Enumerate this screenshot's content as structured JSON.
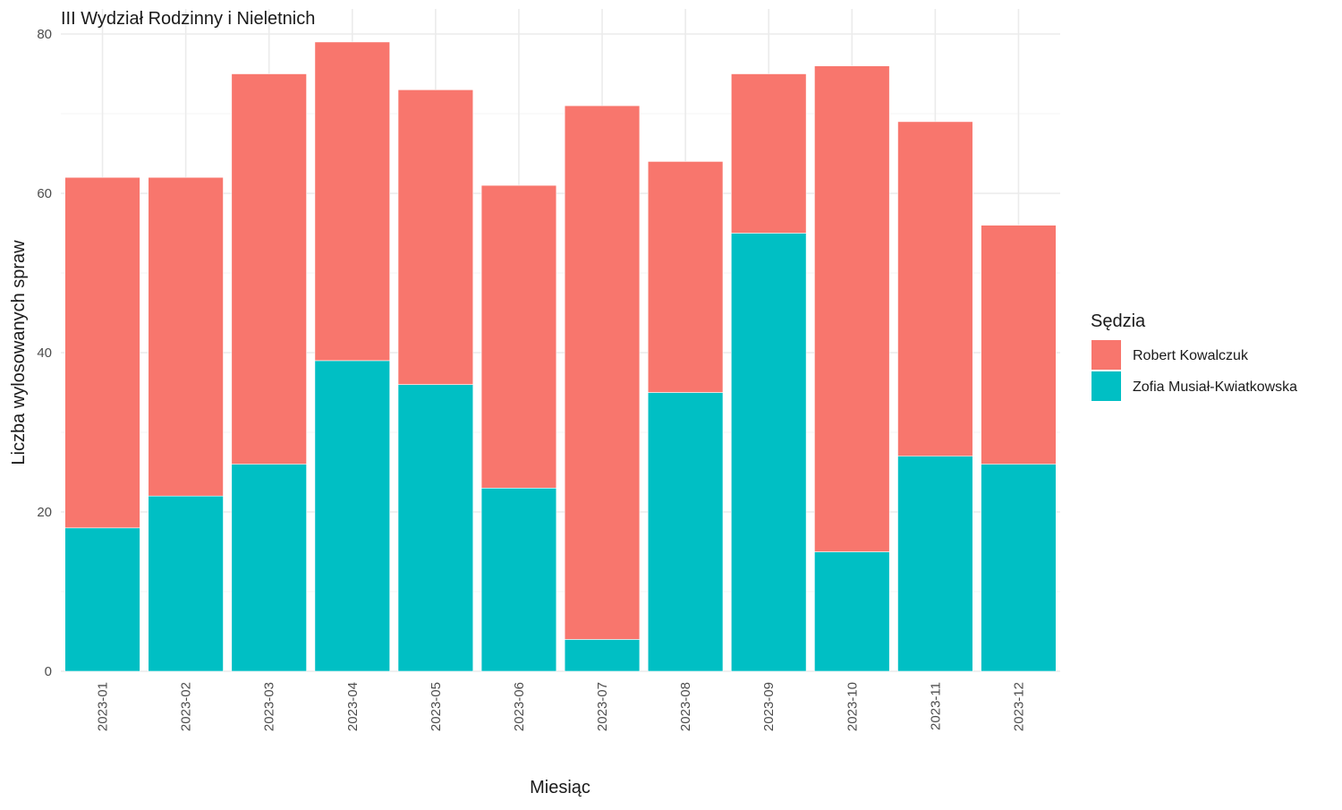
{
  "chart_data": {
    "type": "bar",
    "stacked": true,
    "title": "III Wydział Rodzinny i Nieletnich",
    "xlabel": "Miesiąc",
    "ylabel": "Liczba wylosowanych spraw",
    "categories": [
      "2023-01",
      "2023-02",
      "2023-03",
      "2023-04",
      "2023-05",
      "2023-06",
      "2023-07",
      "2023-08",
      "2023-09",
      "2023-10",
      "2023-11",
      "2023-12"
    ],
    "series": [
      {
        "name": "Zofia Musiał-Kwiatkowska",
        "color": "#00BFC4",
        "values": [
          18,
          22,
          26,
          39,
          36,
          23,
          4,
          35,
          55,
          15,
          27,
          26
        ]
      },
      {
        "name": "Robert Kowalczuk",
        "color": "#F8766D",
        "values": [
          44,
          40,
          49,
          40,
          37,
          38,
          67,
          29,
          20,
          61,
          42,
          30
        ]
      }
    ],
    "ylim": [
      0,
      80
    ],
    "yticks": [
      0,
      20,
      40,
      60,
      80
    ],
    "grid": true,
    "legend": {
      "title": "Sędzia",
      "position": "right",
      "order": [
        "Robert Kowalczuk",
        "Zofia Musiał-Kwiatkowska"
      ]
    }
  }
}
